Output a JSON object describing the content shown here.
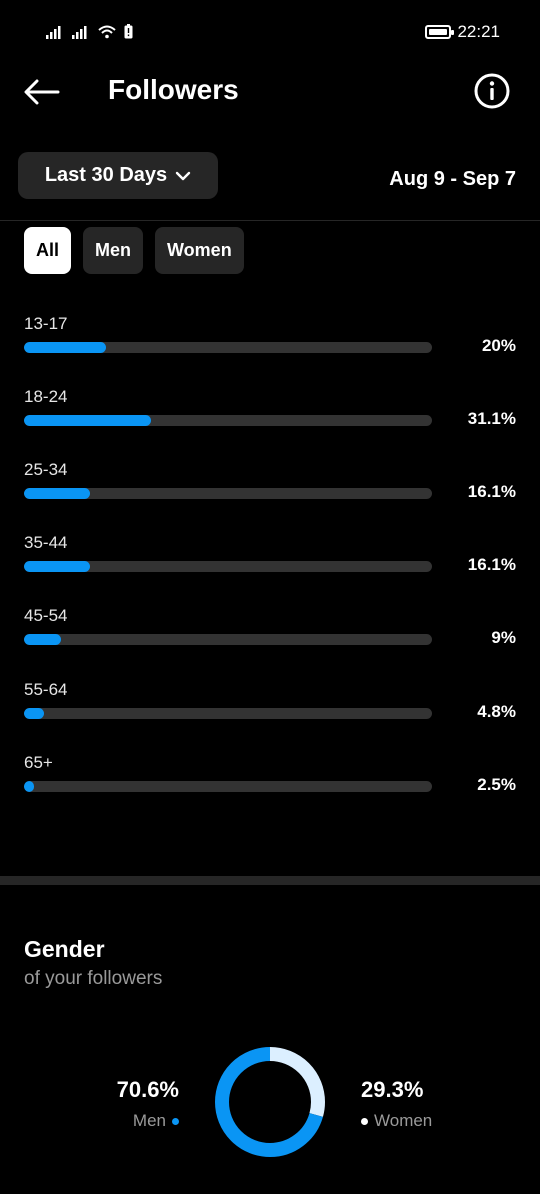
{
  "status_bar": {
    "time": "22:21"
  },
  "header": {
    "title": "Followers"
  },
  "filter": {
    "range_label": "Last 30 Days",
    "date_range": "Aug 9 - Sep 7"
  },
  "chips": [
    {
      "label": "All",
      "active": true
    },
    {
      "label": "Men",
      "active": false
    },
    {
      "label": "Women",
      "active": false
    }
  ],
  "age_ranges": [
    {
      "label": "13-17",
      "value_text": "20%",
      "fraction": 0.2
    },
    {
      "label": "18-24",
      "value_text": "31.1%",
      "fraction": 0.311
    },
    {
      "label": "25-34",
      "value_text": "16.1%",
      "fraction": 0.161
    },
    {
      "label": "35-44",
      "value_text": "16.1%",
      "fraction": 0.161
    },
    {
      "label": "45-54",
      "value_text": "9%",
      "fraction": 0.09
    },
    {
      "label": "55-64",
      "value_text": "4.8%",
      "fraction": 0.048
    },
    {
      "label": "65+",
      "value_text": "2.5%",
      "fraction": 0.025
    }
  ],
  "gender": {
    "title": "Gender",
    "subtitle": "of your followers",
    "men": {
      "value_text": "70.6%",
      "label": "Men",
      "fraction": 0.706,
      "color": "#0a95f4"
    },
    "women": {
      "value_text": "29.3%",
      "label": "Women",
      "fraction": 0.293,
      "color": "#dcefff"
    }
  },
  "colors": {
    "accent": "#0a95f4",
    "track": "#333333",
    "chip_bg": "#262626"
  },
  "icons": {
    "back": "arrow-left-icon",
    "info": "info-icon",
    "dropdown": "chevron-down-icon"
  }
}
